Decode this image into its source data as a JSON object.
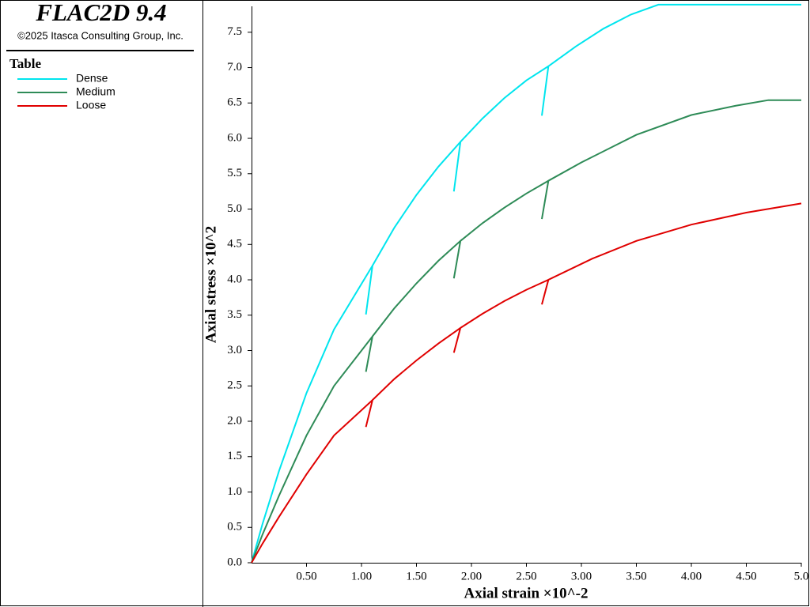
{
  "header": {
    "title": "FLAC2D 9.4",
    "copyright": "©2025 Itasca Consulting Group, Inc."
  },
  "chart_data": {
    "type": "line",
    "legend_title": "Table",
    "x_label": "Axial strain ×10^-2",
    "y_label": "Axial stress ×10^2",
    "xlim": [
      0,
      5.0
    ],
    "ylim": [
      0,
      7.9
    ],
    "xticks": [
      {
        "value": 0.5,
        "label": "0.50"
      },
      {
        "value": 1.0,
        "label": "1.00"
      },
      {
        "value": 1.5,
        "label": "1.50"
      },
      {
        "value": 2.0,
        "label": "2.00"
      },
      {
        "value": 2.5,
        "label": "2.50"
      },
      {
        "value": 3.0,
        "label": "3.00"
      },
      {
        "value": 3.5,
        "label": "3.50"
      },
      {
        "value": 4.0,
        "label": "4.00"
      },
      {
        "value": 4.5,
        "label": "4.50"
      },
      {
        "value": 5.0,
        "label": "5.0"
      }
    ],
    "yticks": [
      {
        "value": 0,
        "label": "0.0"
      },
      {
        "value": 0.5,
        "label": "0.5"
      },
      {
        "value": 1.0,
        "label": "1.0"
      },
      {
        "value": 1.5,
        "label": "1.5"
      },
      {
        "value": 2.0,
        "label": "2.0"
      },
      {
        "value": 2.5,
        "label": "2.5"
      },
      {
        "value": 3.0,
        "label": "3.0"
      },
      {
        "value": 3.5,
        "label": "3.5"
      },
      {
        "value": 4.0,
        "label": "4.0"
      },
      {
        "value": 4.5,
        "label": "4.5"
      },
      {
        "value": 5.0,
        "label": "5.0"
      },
      {
        "value": 5.5,
        "label": "5.5"
      },
      {
        "value": 6.0,
        "label": "6.0"
      },
      {
        "value": 6.5,
        "label": "6.5"
      },
      {
        "value": 7.0,
        "label": "7.0"
      },
      {
        "value": 7.5,
        "label": "7.5"
      }
    ],
    "grid": false,
    "series": [
      {
        "name": "Dense",
        "color": "#00e5ee",
        "x": [
          0,
          0.1,
          0.25,
          0.5,
          0.75,
          1.1,
          1.04,
          1.1,
          1.3,
          1.5,
          1.7,
          1.9,
          1.84,
          1.9,
          2.1,
          2.3,
          2.5,
          2.7,
          2.64,
          2.7,
          2.95,
          3.2,
          3.45,
          3.7,
          4.3,
          5.0
        ],
        "values": [
          0,
          0.55,
          1.3,
          2.4,
          3.3,
          4.2,
          3.51,
          4.2,
          4.74,
          5.2,
          5.6,
          5.95,
          5.25,
          5.95,
          6.28,
          6.57,
          6.82,
          7.02,
          6.32,
          7.02,
          7.3,
          7.55,
          7.75,
          7.89,
          7.89,
          7.89
        ]
      },
      {
        "name": "Medium",
        "color": "#2e8b57",
        "x": [
          0,
          0.1,
          0.25,
          0.5,
          0.75,
          1.1,
          1.04,
          1.1,
          1.3,
          1.5,
          1.7,
          1.9,
          1.84,
          1.9,
          2.1,
          2.3,
          2.5,
          2.7,
          2.64,
          2.7,
          3.0,
          3.5,
          4.0,
          4.4,
          4.7,
          5.0
        ],
        "values": [
          0,
          0.4,
          0.95,
          1.8,
          2.5,
          3.2,
          2.7,
          3.2,
          3.6,
          3.95,
          4.27,
          4.55,
          4.02,
          4.55,
          4.8,
          5.02,
          5.22,
          5.4,
          4.86,
          5.4,
          5.66,
          6.05,
          6.33,
          6.46,
          6.54,
          6.54
        ]
      },
      {
        "name": "Loose",
        "color": "#e00000",
        "x": [
          0,
          0.1,
          0.25,
          0.5,
          0.75,
          1.1,
          1.04,
          1.1,
          1.3,
          1.5,
          1.7,
          1.9,
          1.84,
          1.9,
          2.1,
          2.3,
          2.5,
          2.7,
          2.64,
          2.7,
          3.1,
          3.5,
          4.0,
          4.5,
          5.0
        ],
        "values": [
          0,
          0.27,
          0.65,
          1.25,
          1.8,
          2.3,
          1.92,
          2.3,
          2.6,
          2.86,
          3.1,
          3.32,
          2.97,
          3.32,
          3.52,
          3.7,
          3.86,
          4.0,
          3.65,
          4.0,
          4.3,
          4.55,
          4.78,
          4.95,
          5.08
        ]
      }
    ]
  }
}
